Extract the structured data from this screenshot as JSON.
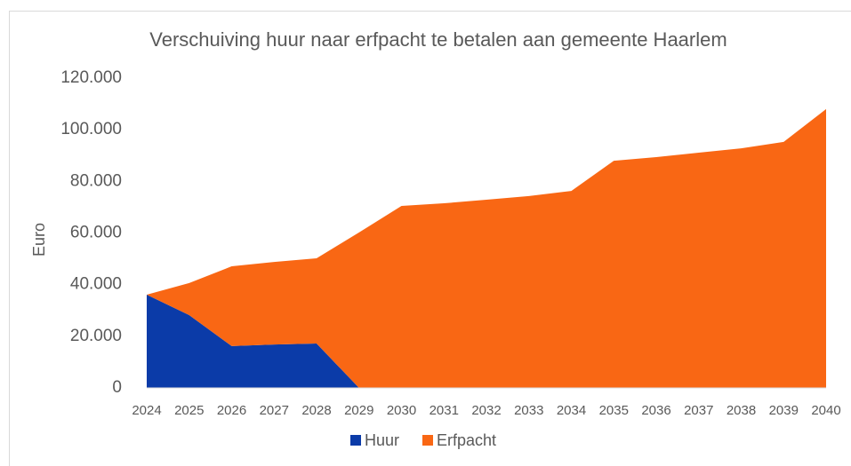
{
  "chart_data": {
    "type": "area",
    "stacked": true,
    "title": "Verschuiving huur naar erfpacht te betalen aan gemeente Haarlem",
    "y_label": "Euro",
    "categories": [
      "2024",
      "2025",
      "2026",
      "2027",
      "2028",
      "2029",
      "2030",
      "2031",
      "2032",
      "2033",
      "2034",
      "2035",
      "2036",
      "2037",
      "2038",
      "2039",
      "2040"
    ],
    "series": [
      {
        "name": "Huur",
        "color": "#0b3ba8",
        "values": [
          36100,
          28200,
          16200,
          16800,
          17200,
          0,
          0,
          0,
          0,
          0,
          0,
          0,
          0,
          0,
          0,
          0,
          0
        ]
      },
      {
        "name": "Erfpacht",
        "color": "#f96714",
        "values": [
          0,
          12400,
          30900,
          32000,
          33000,
          60200,
          70500,
          71500,
          72900,
          74300,
          76300,
          88000,
          89400,
          91100,
          92800,
          95300,
          108000
        ]
      }
    ],
    "ylim": [
      0,
      120000
    ],
    "yticks": [
      0,
      {
        "value": 20000,
        "label": "20.000"
      },
      {
        "value": 40000,
        "label": "40.000"
      },
      {
        "value": 60000,
        "label": "60.000"
      },
      {
        "value": 80000,
        "label": "80.000"
      },
      {
        "value": 100000,
        "label": "100.000"
      },
      {
        "value": 120000,
        "label": "120.000"
      }
    ],
    "legend": "bottom"
  }
}
